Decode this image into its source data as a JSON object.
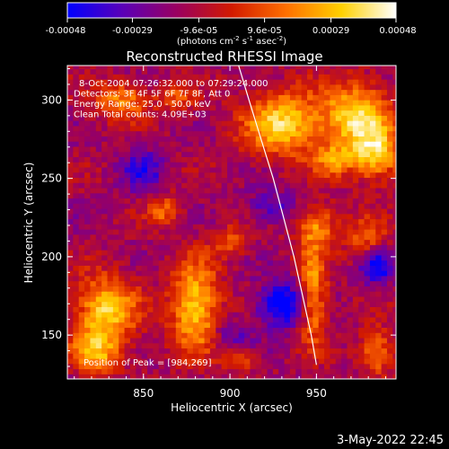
{
  "chart_data": {
    "type": "heatmap",
    "title": "Reconstructed RHESSI Image",
    "xlabel": "Heliocentric X (arcsec)",
    "ylabel": "Heliocentric Y (arcsec)",
    "xlim": [
      806,
      996
    ],
    "ylim": [
      122,
      322
    ],
    "x_ticks": [
      850,
      900,
      950
    ],
    "y_ticks": [
      150,
      200,
      250,
      300
    ],
    "colorbar": {
      "min": -0.00048,
      "max": 0.00048,
      "ticks": [
        -0.00048,
        -0.00029,
        -9.6e-05,
        9.6e-05,
        0.00029,
        0.00048
      ],
      "tick_labels": [
        "-0.00048",
        "-0.00029",
        "-9.6e-05",
        "9.6e-05",
        "0.00029",
        "0.00048"
      ],
      "unit_parts": [
        "(photons cm",
        "-2",
        " s",
        "-1",
        " asec",
        "-2",
        ")"
      ],
      "colors": [
        "#0000ff",
        "#5a00b8",
        "#9a0060",
        "#d21a00",
        "#ff7000",
        "#ffd000",
        "#ffffff"
      ]
    },
    "annotations": [
      "8-Oct-2004 07:26:32.000 to 07:29:24.000",
      "Detectors: 3F 4F 5F 6F 7F 8F, Att 0",
      "Energy Range: 25.0 - 50.0 keV",
      "Clean      Total counts: 4.09E+03"
    ],
    "peak_label": "Position of Peak = [984,269]",
    "peak_position": [
      984,
      269
    ],
    "limb_curve": {
      "x": [
        905,
        911,
        918,
        925,
        931,
        937,
        942,
        947,
        950
      ],
      "y": [
        322,
        300,
        275,
        250,
        225,
        200,
        175,
        150,
        131
      ]
    },
    "hotspots": [
      {
        "x": 930,
        "y": 285,
        "amp": 1.0,
        "sx": 22,
        "sy": 20
      },
      {
        "x": 973,
        "y": 290,
        "amp": 1.0,
        "sx": 20,
        "sy": 22
      },
      {
        "x": 985,
        "y": 265,
        "amp": 0.9,
        "sx": 14,
        "sy": 16
      },
      {
        "x": 960,
        "y": 262,
        "amp": 0.6,
        "sx": 12,
        "sy": 10
      },
      {
        "x": 880,
        "y": 168,
        "amp": 1.0,
        "sx": 14,
        "sy": 28
      },
      {
        "x": 828,
        "y": 165,
        "amp": 1.0,
        "sx": 18,
        "sy": 22
      },
      {
        "x": 822,
        "y": 138,
        "amp": 0.7,
        "sx": 14,
        "sy": 12
      },
      {
        "x": 838,
        "y": 300,
        "amp": 0.7,
        "sx": 16,
        "sy": 12
      },
      {
        "x": 950,
        "y": 220,
        "amp": 0.7,
        "sx": 12,
        "sy": 14
      },
      {
        "x": 948,
        "y": 175,
        "amp": 0.8,
        "sx": 8,
        "sy": 30
      },
      {
        "x": 980,
        "y": 210,
        "amp": 0.55,
        "sx": 12,
        "sy": 14
      },
      {
        "x": 862,
        "y": 230,
        "amp": 0.55,
        "sx": 10,
        "sy": 10
      },
      {
        "x": 900,
        "y": 210,
        "amp": 0.45,
        "sx": 10,
        "sy": 10
      },
      {
        "x": 985,
        "y": 140,
        "amp": 0.7,
        "sx": 10,
        "sy": 14
      },
      {
        "x": 905,
        "y": 135,
        "amp": 0.5,
        "sx": 10,
        "sy": 8
      },
      {
        "x": 870,
        "y": 302,
        "amp": 0.5,
        "sx": 10,
        "sy": 8
      }
    ],
    "coldspots": [
      {
        "x": 930,
        "y": 170,
        "amp": -0.9,
        "sx": 14,
        "sy": 14
      },
      {
        "x": 985,
        "y": 195,
        "amp": -0.8,
        "sx": 10,
        "sy": 12
      },
      {
        "x": 850,
        "y": 255,
        "amp": -0.5,
        "sx": 12,
        "sy": 14
      },
      {
        "x": 925,
        "y": 232,
        "amp": -0.5,
        "sx": 14,
        "sy": 10
      },
      {
        "x": 900,
        "y": 150,
        "amp": -0.35,
        "sx": 12,
        "sy": 12
      }
    ]
  },
  "footer_date": "3-May-2022 22:45"
}
